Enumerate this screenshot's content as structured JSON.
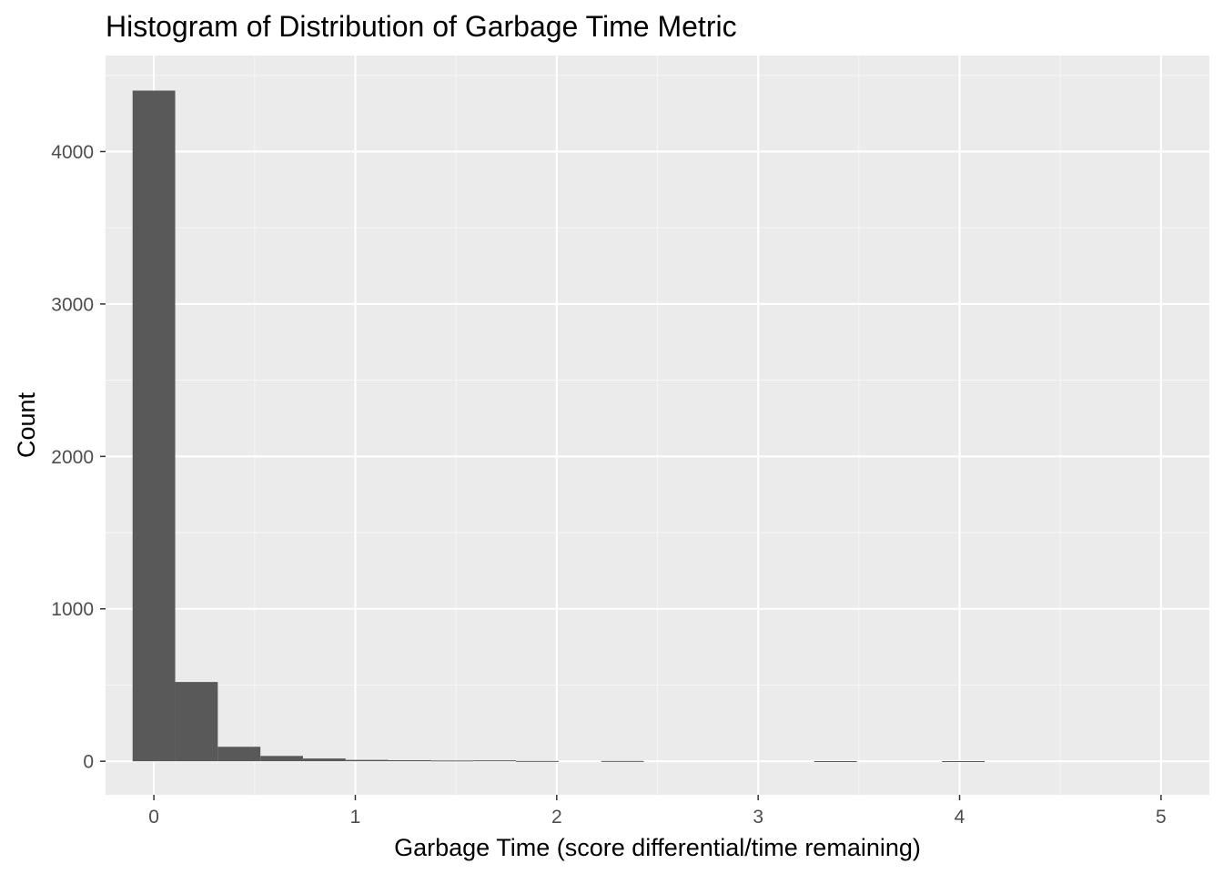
{
  "chart_data": {
    "type": "bar",
    "title": "Histogram of Distribution of Garbage Time Metric",
    "xlabel": "Garbage Time (score differential/time remaining)",
    "ylabel": "Count",
    "xlim": [
      -0.24,
      5.24
    ],
    "ylim": [
      -220,
      4630
    ],
    "x_ticks": [
      0,
      1,
      2,
      3,
      4,
      5
    ],
    "y_ticks": [
      0,
      1000,
      2000,
      3000,
      4000
    ],
    "bin_width": 0.2115,
    "bins": [
      {
        "center": 0.0,
        "count": 4400
      },
      {
        "center": 0.2115,
        "count": 520
      },
      {
        "center": 0.423,
        "count": 95
      },
      {
        "center": 0.6345,
        "count": 35
      },
      {
        "center": 0.846,
        "count": 18
      },
      {
        "center": 1.0575,
        "count": 9
      },
      {
        "center": 1.269,
        "count": 7
      },
      {
        "center": 1.4805,
        "count": 5
      },
      {
        "center": 1.692,
        "count": 6
      },
      {
        "center": 1.9035,
        "count": 2
      },
      {
        "center": 2.115,
        "count": 0
      },
      {
        "center": 2.3265,
        "count": 2
      },
      {
        "center": 2.538,
        "count": 0
      },
      {
        "center": 2.7495,
        "count": 0
      },
      {
        "center": 2.961,
        "count": 0
      },
      {
        "center": 3.1725,
        "count": 0
      },
      {
        "center": 3.384,
        "count": 1
      },
      {
        "center": 3.5955,
        "count": 0
      },
      {
        "center": 3.807,
        "count": 0
      },
      {
        "center": 4.0185,
        "count": 1
      },
      {
        "center": 4.23,
        "count": 0
      },
      {
        "center": 4.4415,
        "count": 0
      },
      {
        "center": 4.653,
        "count": 0
      },
      {
        "center": 4.8645,
        "count": 0
      },
      {
        "center": 5.076,
        "count": 0
      }
    ],
    "grid": true,
    "legend": "none",
    "colors": {
      "panel_background": "#ebebeb",
      "grid_major": "#ffffff",
      "grid_minor": "#f5f5f5",
      "bar_fill": "#595959",
      "tick_mark": "#333333",
      "tick_label": "#4d4d4d",
      "text": "#000000"
    }
  }
}
